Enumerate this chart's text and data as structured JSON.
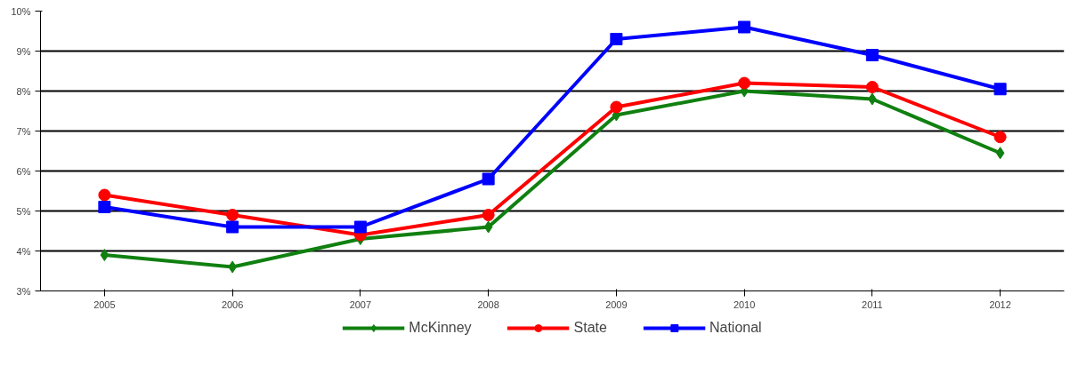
{
  "chart_data": {
    "type": "line",
    "categories": [
      "2005",
      "2006",
      "2007",
      "2008",
      "2009",
      "2010",
      "2011",
      "2012"
    ],
    "series": [
      {
        "name": "McKinney",
        "color": "#108010",
        "marker": "diamond",
        "values": [
          3.9,
          3.6,
          4.3,
          4.6,
          7.4,
          8.0,
          7.8,
          6.45
        ]
      },
      {
        "name": "State",
        "color": "#ff0000",
        "marker": "circle",
        "values": [
          5.4,
          4.9,
          4.4,
          4.9,
          7.6,
          8.2,
          8.1,
          6.85
        ]
      },
      {
        "name": "National",
        "color": "#0000ff",
        "marker": "square",
        "values": [
          5.1,
          4.6,
          4.6,
          5.8,
          9.3,
          9.6,
          8.9,
          8.05
        ]
      }
    ],
    "ylim": [
      3,
      10
    ],
    "yticks": [
      {
        "value": 3,
        "label": "3%"
      },
      {
        "value": 4,
        "label": "4%"
      },
      {
        "value": 5,
        "label": "5%"
      },
      {
        "value": 6,
        "label": "6%"
      },
      {
        "value": 7,
        "label": "7%"
      },
      {
        "value": 8,
        "label": "8%"
      },
      {
        "value": 9,
        "label": "9%"
      },
      {
        "value": 10,
        "label": "10%"
      }
    ],
    "grid": "y",
    "legend": "bottom"
  }
}
